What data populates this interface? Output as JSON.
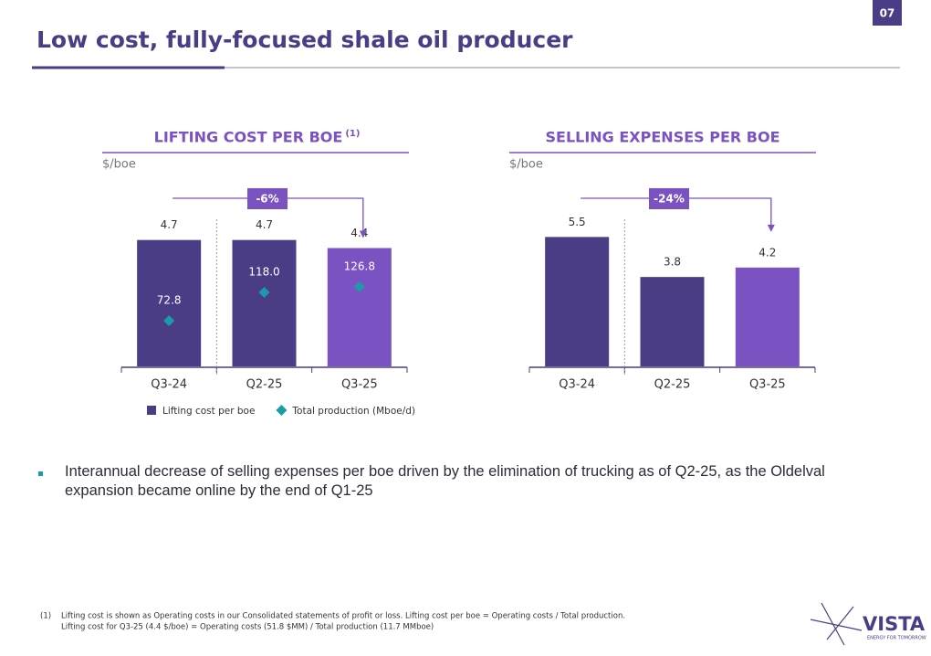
{
  "page_number": "07",
  "title": "Low cost, fully-focused shale oil producer",
  "chart_data": [
    {
      "type": "bar",
      "title": "LIFTING COST PER BOE",
      "title_note": "(1)",
      "y_unit": "$/boe",
      "categories": [
        "Q3-24",
        "Q2-25",
        "Q3-25"
      ],
      "series": [
        {
          "name": "Lifting cost per boe",
          "values": [
            4.7,
            4.7,
            4.4
          ],
          "colors": [
            "#4a3d85",
            "#4a3d85",
            "#7b52c1"
          ]
        },
        {
          "name": "Total production (Mboe/d)",
          "type": "scatter",
          "axis": "y2",
          "values": [
            72.8,
            118,
            126.8
          ],
          "value_labels": [
            "72.8",
            "118.0",
            "126.8"
          ],
          "color": "#1a9ba8"
        }
      ],
      "ylim": [
        0,
        7
      ],
      "y2lim": [
        0,
        300
      ],
      "annotation": "-6%",
      "legend": "bottom"
    },
    {
      "type": "bar",
      "title": "SELLING EXPENSES PER BOE",
      "y_unit": "$/boe",
      "categories": [
        "Q3-24",
        "Q2-25",
        "Q3-25"
      ],
      "series": [
        {
          "values": [
            5.5,
            3.8,
            4.2
          ],
          "colors": [
            "#4a3d85",
            "#4a3d85",
            "#7b52c1"
          ]
        }
      ],
      "ylim": [
        0,
        8
      ],
      "annotation": "-24%"
    }
  ],
  "bullet": "Interannual decrease of selling expenses per boe driven by the elimination of trucking as of Q2-25, as the Oldelval expansion became online by the end of Q1-25",
  "footnote": {
    "marker": "(1)",
    "lines": [
      "Lifting cost is shown as Operating costs in our Consolidated statements of profit or loss. Lifting cost per boe = Operating costs / Total production.",
      "Lifting cost for Q3-25 (4.4 $/boe) = Operating costs (51.8 $MM) / Total production (11.7 MMboe)"
    ]
  },
  "logo": {
    "name": "VISTA",
    "tagline": "ENERGY FOR TOMORROW"
  }
}
